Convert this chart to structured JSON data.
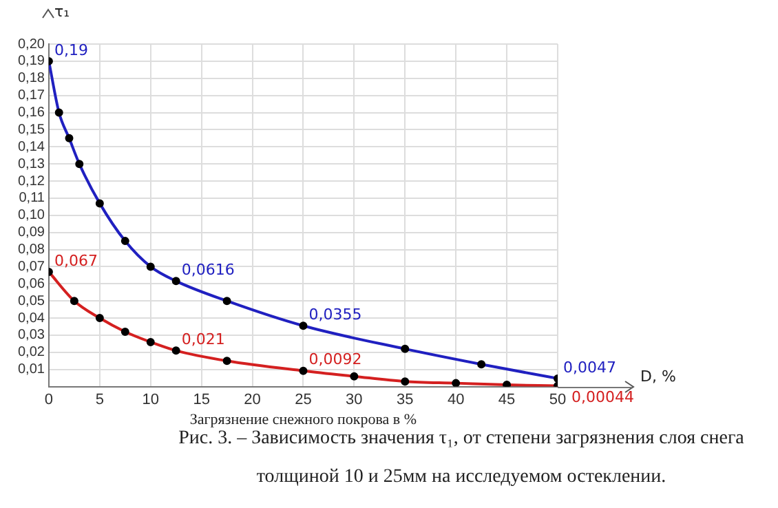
{
  "chart_data": {
    "type": "line",
    "ylabel": "τ₁",
    "xlabel": "Загрязнение снежного покрова в %",
    "annotations": [
      {
        "text": "D, %",
        "x": 50,
        "y": 0
      },
      "Рис. 3. – Зависимость значения τ₁, от степени загрязнения слоя снега толщиной 10 и 25мм на исследуемом остеклении."
    ],
    "xlim": [
      0,
      50
    ],
    "xticks": [
      0,
      5,
      10,
      15,
      20,
      25,
      30,
      35,
      40,
      45,
      50
    ],
    "ylim": [
      0,
      0.2
    ],
    "yticks": [
      {
        "value": 0,
        "label": null
      },
      {
        "value": 0.01,
        "label": "0,01"
      },
      {
        "value": 0.02,
        "label": "0,02"
      },
      {
        "value": 0.03,
        "label": "0,03"
      },
      {
        "value": 0.04,
        "label": "0,04"
      },
      {
        "value": 0.05,
        "label": "0,05"
      },
      {
        "value": 0.06,
        "label": "0,06"
      },
      {
        "value": 0.07,
        "label": "0,07"
      },
      {
        "value": 0.08,
        "label": "0,08"
      },
      {
        "value": 0.09,
        "label": "0,09"
      },
      {
        "value": 0.1,
        "label": "0,10"
      },
      {
        "value": 0.11,
        "label": "0,11"
      },
      {
        "value": 0.12,
        "label": "0,12"
      },
      {
        "value": 0.13,
        "label": "0,13"
      },
      {
        "value": 0.14,
        "label": "0,14"
      },
      {
        "value": 0.15,
        "label": "0,15"
      },
      {
        "value": 0.16,
        "label": "0,16"
      },
      {
        "value": 0.17,
        "label": "0,17"
      },
      {
        "value": 0.18,
        "label": "0,18"
      },
      {
        "value": 0.19,
        "label": "0,19"
      },
      {
        "value": 0.2,
        "label": "0,20"
      }
    ],
    "grid": true,
    "legend": false,
    "marker": "circle",
    "line_style": "solid",
    "series": [
      {
        "color": "#2020c0",
        "x": [
          0,
          1,
          2,
          3,
          5,
          7.5,
          10,
          12.5,
          17.5,
          25,
          35,
          42.5,
          50
        ],
        "values": [
          0.19,
          0.16,
          0.145,
          0.13,
          0.107,
          0.085,
          0.07,
          0.0616,
          0.05,
          0.0355,
          0.022,
          0.013,
          0.0047
        ],
        "value_labels": [
          "0,19",
          null,
          null,
          null,
          null,
          null,
          null,
          "0,0616",
          null,
          "0,0355",
          null,
          null,
          "0,0047"
        ]
      },
      {
        "color": "#d42020",
        "x": [
          0,
          2.5,
          5,
          7.5,
          10,
          12.5,
          17.5,
          25,
          30,
          35,
          40,
          45,
          50
        ],
        "values": [
          0.067,
          0.05,
          0.04,
          0.032,
          0.026,
          0.021,
          0.015,
          0.0092,
          0.006,
          0.003,
          0.002,
          0.001,
          0.00044
        ],
        "value_labels": [
          "0,067",
          null,
          null,
          null,
          null,
          "0,021",
          null,
          "0,0092",
          null,
          null,
          null,
          null,
          "0,00044"
        ]
      }
    ]
  }
}
